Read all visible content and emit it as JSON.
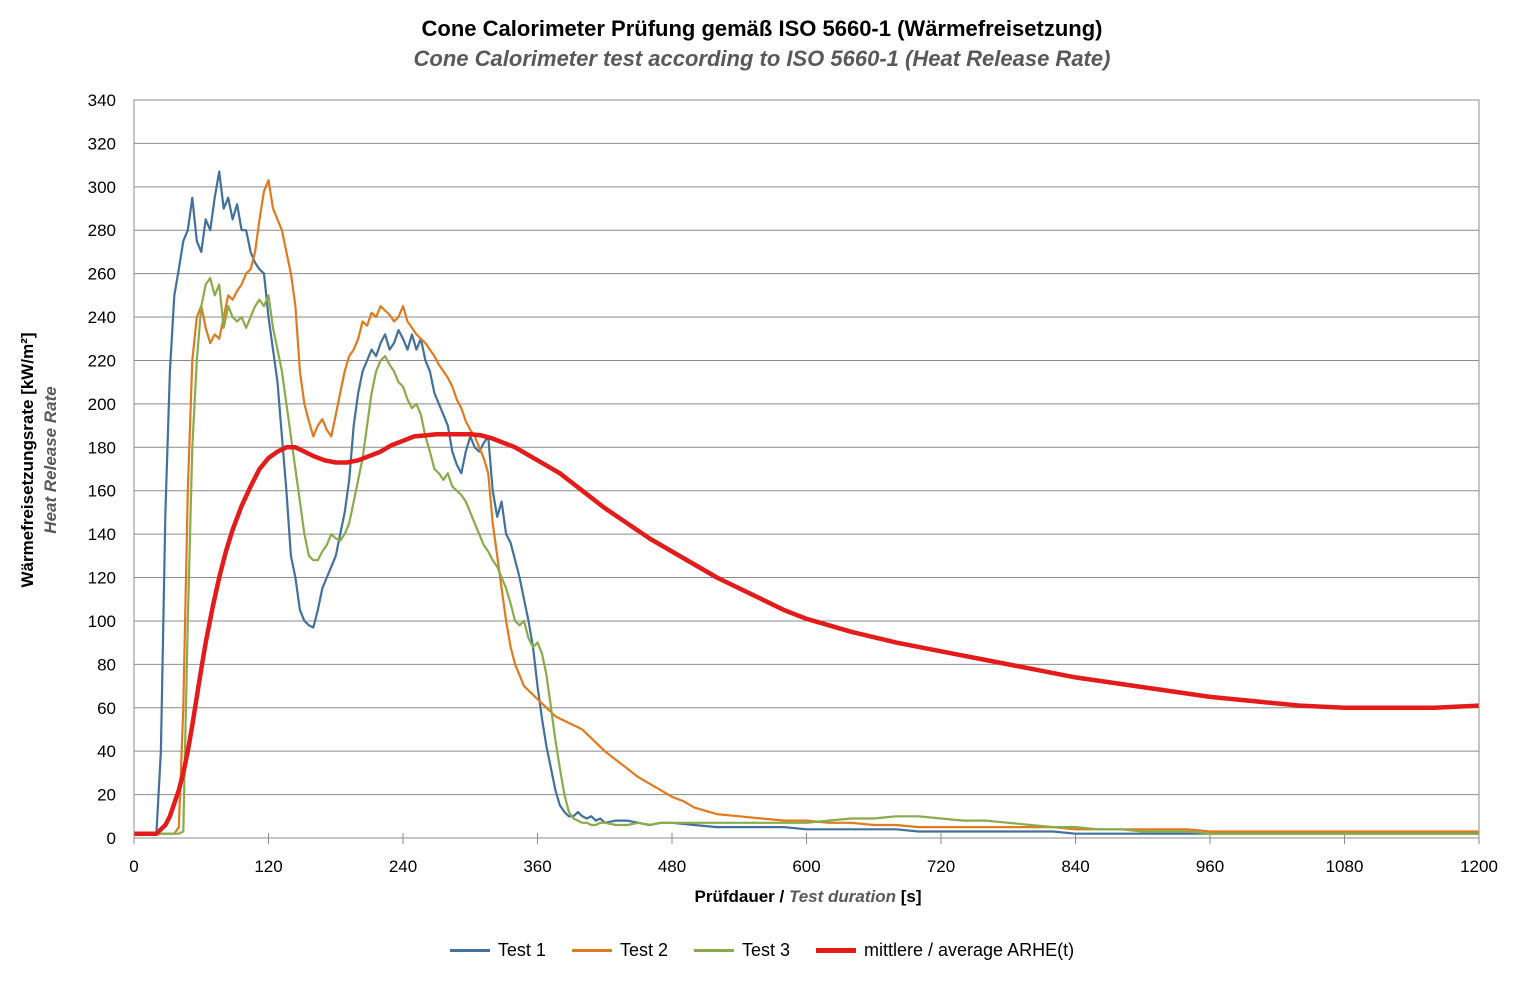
{
  "title": "Cone Calorimeter Prüfung gemäß ISO 5660-1 (Wärmefreisetzung)",
  "subtitle": "Cone Calorimeter test according to ISO 5660-1 (Heat Release Rate)",
  "chart_data": {
    "type": "line",
    "title": "Cone Calorimeter Prüfung gemäß ISO 5660-1 (Wärmefreisetzung)",
    "subtitle": "Cone Calorimeter test according to ISO 5660-1 (Heat Release Rate)",
    "xlabel_main": "Prüfdauer / ",
    "xlabel_italic": "Test duration",
    "xlabel_unit": " [s]",
    "ylabel_main": "Wärmefreisetzungsrate  [kW/m²]",
    "ylabel_italic": "Heat Release Rate",
    "xlim": [
      0,
      1200
    ],
    "ylim": [
      0,
      340
    ],
    "xticks": [
      0,
      120,
      240,
      360,
      480,
      600,
      720,
      840,
      960,
      1080,
      1200
    ],
    "yticks": [
      0,
      20,
      40,
      60,
      80,
      100,
      120,
      140,
      160,
      180,
      200,
      220,
      240,
      260,
      280,
      300,
      320,
      340
    ],
    "grid": "horizontal",
    "legend_position": "bottom",
    "series": [
      {
        "name": "Test  1",
        "color": "#41719C",
        "x": [
          0,
          20,
          24,
          28,
          32,
          36,
          40,
          44,
          48,
          52,
          56,
          60,
          64,
          68,
          72,
          76,
          80,
          84,
          88,
          92,
          96,
          100,
          104,
          108,
          112,
          116,
          120,
          124,
          128,
          132,
          136,
          140,
          144,
          148,
          152,
          156,
          160,
          164,
          168,
          172,
          176,
          180,
          184,
          188,
          192,
          196,
          200,
          204,
          208,
          212,
          216,
          220,
          224,
          228,
          232,
          236,
          240,
          244,
          248,
          252,
          256,
          260,
          264,
          268,
          272,
          276,
          280,
          284,
          288,
          292,
          296,
          300,
          304,
          308,
          312,
          316,
          320,
          324,
          328,
          332,
          336,
          340,
          344,
          348,
          352,
          356,
          360,
          364,
          368,
          372,
          376,
          380,
          384,
          388,
          392,
          396,
          400,
          404,
          408,
          412,
          416,
          420,
          430,
          440,
          450,
          460,
          470,
          480,
          500,
          520,
          540,
          560,
          580,
          600,
          620,
          640,
          660,
          680,
          700,
          720,
          740,
          760,
          780,
          800,
          820,
          840,
          860,
          880,
          900,
          920,
          940,
          960,
          980,
          1000,
          1020,
          1040,
          1060,
          1080,
          1100,
          1120,
          1140,
          1160,
          1180,
          1200
        ],
        "values": [
          2,
          2,
          40,
          150,
          215,
          250,
          262,
          275,
          280,
          295,
          275,
          270,
          285,
          280,
          295,
          307,
          290,
          295,
          285,
          292,
          280,
          280,
          270,
          265,
          262,
          260,
          240,
          225,
          210,
          185,
          160,
          130,
          120,
          105,
          100,
          98,
          97,
          105,
          115,
          120,
          125,
          130,
          140,
          150,
          165,
          190,
          205,
          215,
          220,
          225,
          222,
          228,
          232,
          225,
          228,
          234,
          230,
          225,
          232,
          225,
          230,
          220,
          215,
          205,
          200,
          195,
          190,
          178,
          172,
          168,
          178,
          185,
          180,
          178,
          182,
          185,
          160,
          148,
          155,
          140,
          136,
          128,
          120,
          110,
          100,
          88,
          70,
          55,
          42,
          32,
          22,
          15,
          12,
          10,
          10,
          12,
          10,
          9,
          10,
          8,
          9,
          7,
          8,
          8,
          7,
          6,
          7,
          7,
          6,
          5,
          5,
          5,
          5,
          4,
          4,
          4,
          4,
          4,
          3,
          3,
          3,
          3,
          3,
          3,
          3,
          2,
          2,
          2,
          2,
          2,
          2,
          2,
          2,
          2,
          2,
          2,
          2,
          2,
          2,
          2,
          2,
          2,
          2,
          2
        ]
      },
      {
        "name": "Test  2",
        "color": "#E07A1F",
        "x": [
          0,
          36,
          40,
          44,
          48,
          52,
          56,
          60,
          64,
          68,
          72,
          76,
          80,
          84,
          88,
          92,
          96,
          100,
          104,
          108,
          112,
          116,
          120,
          124,
          128,
          132,
          136,
          140,
          144,
          148,
          152,
          156,
          160,
          164,
          168,
          172,
          176,
          180,
          184,
          188,
          192,
          196,
          200,
          204,
          208,
          212,
          216,
          220,
          224,
          228,
          232,
          236,
          240,
          244,
          248,
          252,
          256,
          260,
          264,
          268,
          272,
          276,
          280,
          284,
          288,
          292,
          296,
          300,
          304,
          308,
          312,
          316,
          320,
          324,
          328,
          332,
          336,
          340,
          344,
          348,
          352,
          356,
          360,
          364,
          368,
          372,
          376,
          380,
          384,
          388,
          392,
          396,
          400,
          410,
          420,
          430,
          440,
          450,
          460,
          470,
          480,
          490,
          500,
          520,
          540,
          560,
          580,
          600,
          620,
          640,
          660,
          680,
          700,
          720,
          740,
          760,
          780,
          800,
          820,
          840,
          860,
          880,
          900,
          920,
          940,
          960,
          980,
          1000,
          1020,
          1040,
          1060,
          1080,
          1100,
          1120,
          1140,
          1160,
          1180,
          1200
        ],
        "values": [
          2,
          2,
          5,
          60,
          160,
          220,
          240,
          245,
          235,
          228,
          232,
          230,
          240,
          250,
          248,
          252,
          255,
          260,
          262,
          270,
          285,
          298,
          303,
          290,
          285,
          280,
          270,
          260,
          245,
          215,
          200,
          192,
          185,
          190,
          193,
          188,
          185,
          195,
          205,
          215,
          222,
          225,
          230,
          238,
          236,
          242,
          240,
          245,
          243,
          241,
          238,
          240,
          245,
          238,
          235,
          232,
          230,
          228,
          225,
          222,
          218,
          215,
          212,
          208,
          202,
          198,
          192,
          188,
          185,
          180,
          175,
          168,
          145,
          130,
          115,
          100,
          88,
          80,
          75,
          70,
          68,
          66,
          64,
          62,
          60,
          58,
          56,
          55,
          54,
          53,
          52,
          51,
          50,
          45,
          40,
          36,
          32,
          28,
          25,
          22,
          19,
          17,
          14,
          11,
          10,
          9,
          8,
          8,
          7,
          7,
          6,
          6,
          5,
          5,
          5,
          5,
          5,
          5,
          5,
          4,
          4,
          4,
          4,
          4,
          4,
          3,
          3,
          3,
          3,
          3,
          3,
          3,
          3,
          3,
          3,
          3,
          3,
          3
        ]
      },
      {
        "name": "Test  3",
        "color": "#8AAB4A",
        "x": [
          0,
          40,
          44,
          48,
          52,
          56,
          60,
          64,
          68,
          72,
          76,
          80,
          84,
          88,
          92,
          96,
          100,
          104,
          108,
          112,
          116,
          120,
          124,
          128,
          132,
          136,
          140,
          144,
          148,
          152,
          156,
          160,
          164,
          168,
          172,
          176,
          180,
          184,
          188,
          192,
          196,
          200,
          204,
          208,
          212,
          216,
          220,
          224,
          228,
          232,
          236,
          240,
          244,
          248,
          252,
          256,
          260,
          264,
          268,
          272,
          276,
          280,
          284,
          288,
          292,
          296,
          300,
          304,
          308,
          312,
          316,
          320,
          324,
          328,
          332,
          336,
          340,
          344,
          348,
          352,
          356,
          360,
          364,
          368,
          372,
          376,
          380,
          384,
          388,
          392,
          396,
          400,
          404,
          408,
          412,
          416,
          420,
          430,
          440,
          450,
          460,
          470,
          480,
          500,
          520,
          540,
          560,
          580,
          600,
          620,
          640,
          660,
          680,
          700,
          720,
          740,
          760,
          780,
          800,
          820,
          840,
          860,
          880,
          900,
          920,
          940,
          960,
          980,
          1000,
          1020,
          1040,
          1060,
          1080,
          1100,
          1120,
          1140,
          1160,
          1180,
          1200
        ],
        "values": [
          2,
          2,
          3,
          100,
          180,
          220,
          245,
          255,
          258,
          250,
          255,
          235,
          245,
          240,
          238,
          240,
          235,
          240,
          245,
          248,
          245,
          250,
          235,
          225,
          215,
          200,
          185,
          170,
          155,
          140,
          130,
          128,
          128,
          132,
          135,
          140,
          138,
          137,
          140,
          145,
          155,
          165,
          175,
          190,
          205,
          215,
          220,
          222,
          218,
          215,
          210,
          208,
          202,
          198,
          200,
          195,
          185,
          178,
          170,
          168,
          165,
          168,
          162,
          160,
          158,
          155,
          150,
          145,
          140,
          135,
          132,
          128,
          125,
          120,
          115,
          108,
          100,
          98,
          100,
          92,
          88,
          90,
          85,
          75,
          60,
          45,
          32,
          20,
          12,
          9,
          8,
          7,
          7,
          6,
          6,
          7,
          7,
          6,
          6,
          7,
          6,
          7,
          7,
          7,
          7,
          7,
          7,
          7,
          7,
          8,
          9,
          9,
          10,
          10,
          9,
          8,
          8,
          7,
          6,
          5,
          5,
          4,
          4,
          3,
          3,
          3,
          2,
          2,
          2,
          2,
          2,
          2,
          2,
          2,
          2,
          2,
          2,
          2,
          2
        ]
      },
      {
        "name": "mittlere / average ARHE(t)",
        "color": "#E31B1B",
        "x": [
          0,
          20,
          24,
          28,
          32,
          36,
          40,
          44,
          48,
          52,
          56,
          60,
          64,
          70,
          76,
          82,
          88,
          96,
          104,
          112,
          120,
          128,
          136,
          144,
          152,
          160,
          170,
          180,
          190,
          200,
          210,
          220,
          230,
          240,
          250,
          260,
          270,
          280,
          290,
          300,
          310,
          320,
          330,
          340,
          350,
          360,
          370,
          380,
          390,
          400,
          420,
          440,
          460,
          480,
          500,
          520,
          540,
          560,
          580,
          600,
          640,
          680,
          720,
          760,
          800,
          840,
          880,
          920,
          960,
          1000,
          1040,
          1080,
          1120,
          1160,
          1200
        ],
        "values": [
          2,
          2,
          4,
          6,
          10,
          16,
          22,
          30,
          40,
          52,
          65,
          78,
          90,
          106,
          120,
          132,
          142,
          153,
          162,
          170,
          175,
          178,
          180,
          180,
          178,
          176,
          174,
          173,
          173,
          174,
          176,
          178,
          181,
          183,
          185,
          185.5,
          186,
          186,
          186,
          186,
          185.5,
          184,
          182,
          180,
          177,
          174,
          171,
          168,
          164,
          160,
          152,
          145,
          138,
          132,
          126,
          120,
          115,
          110,
          105,
          101,
          95,
          90,
          86,
          82,
          78,
          74,
          71,
          68,
          65,
          63,
          61,
          60,
          60,
          60,
          61
        ]
      }
    ]
  }
}
